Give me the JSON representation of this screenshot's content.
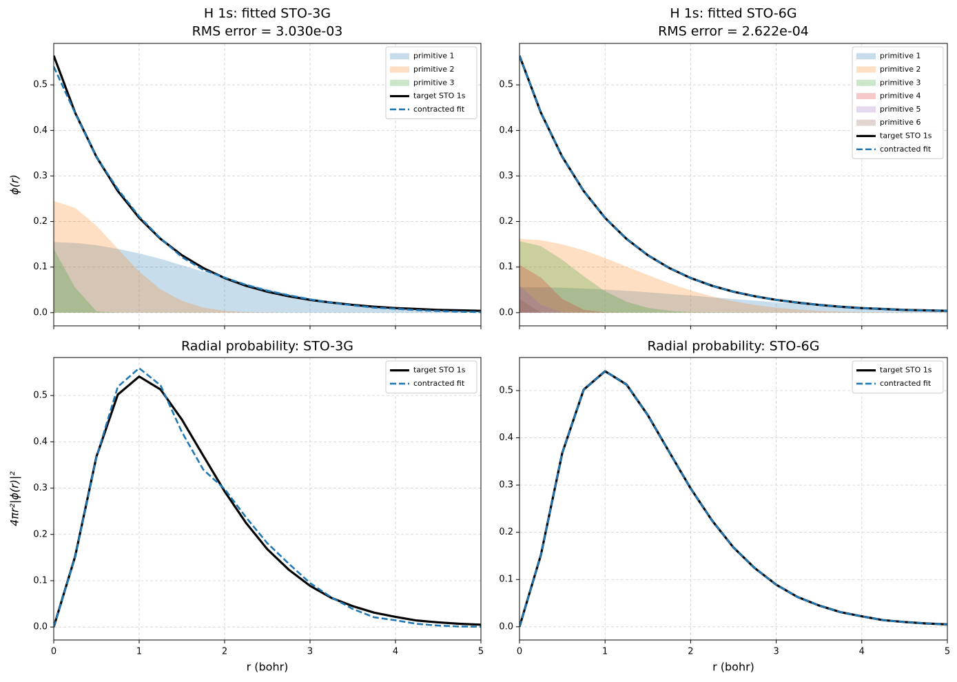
{
  "chart_data": [
    {
      "type": "line",
      "title": "H 1s: fitted STO-3G",
      "subtitle": "RMS error = 3.030e-03",
      "ylabel": "ϕ(r)",
      "x": [
        0,
        0.25,
        0.5,
        0.75,
        1,
        1.25,
        1.5,
        1.75,
        2,
        2.25,
        2.5,
        2.75,
        3,
        3.25,
        3.5,
        3.75,
        4,
        4.25,
        4.5,
        4.75,
        5
      ],
      "series": [
        {
          "name": "primitive 1",
          "color": "#1f77b4",
          "style": "fill",
          "values": [
            0.155,
            0.153,
            0.148,
            0.14,
            0.13,
            0.118,
            0.104,
            0.09,
            0.077,
            0.064,
            0.052,
            0.041,
            0.032,
            0.024,
            0.018,
            0.013,
            0.009,
            0.006,
            0.004,
            0.003,
            0.002
          ]
        },
        {
          "name": "primitive 2",
          "color": "#ff7f0e",
          "style": "fill",
          "values": [
            0.245,
            0.23,
            0.191,
            0.14,
            0.09,
            0.051,
            0.026,
            0.011,
            0.004,
            0.0015,
            0.0005,
            0,
            0,
            0,
            0,
            0,
            0,
            0,
            0,
            0,
            0
          ]
        },
        {
          "name": "primitive 3",
          "color": "#2ca02c",
          "style": "fill",
          "values": [
            0.14,
            0.055,
            0.003,
            0,
            0,
            0,
            0,
            0,
            0,
            0,
            0,
            0,
            0,
            0,
            0,
            0,
            0,
            0,
            0,
            0,
            0
          ]
        },
        {
          "name": "target STO 1s",
          "color": "#000000",
          "style": "solid",
          "values": [
            0.564,
            0.439,
            0.342,
            0.267,
            0.208,
            0.162,
            0.126,
            0.098,
            0.076,
            0.059,
            0.046,
            0.036,
            0.028,
            0.022,
            0.017,
            0.013,
            0.01,
            0.008,
            0.006,
            0.005,
            0.004
          ]
        },
        {
          "name": "contracted fit",
          "color": "#1f77b4",
          "style": "dashed",
          "values": [
            0.54,
            0.438,
            0.342,
            0.271,
            0.211,
            0.163,
            0.122,
            0.094,
            0.077,
            0.061,
            0.048,
            0.038,
            0.029,
            0.022,
            0.016,
            0.011,
            0.0085,
            0.0055,
            0.0035,
            0.002,
            0.0012
          ]
        }
      ],
      "xlim": [
        0,
        5
      ],
      "ylim": [
        -0.029,
        0.591
      ],
      "xticks": [
        0,
        1,
        2,
        3,
        4,
        5
      ],
      "xtick_labels": false,
      "yticks": [
        {
          "value": 0,
          "label": "0.0"
        },
        0.1,
        0.2,
        0.3,
        0.4,
        0.5
      ],
      "grid": true,
      "legend": "upper right"
    },
    {
      "type": "line",
      "title": "H 1s: fitted STO-6G",
      "subtitle": "RMS error = 2.622e-04",
      "x": [
        0,
        0.25,
        0.5,
        0.75,
        1,
        1.25,
        1.5,
        1.75,
        2,
        2.25,
        2.5,
        2.75,
        3,
        3.25,
        3.5,
        3.75,
        4,
        4.25,
        4.5,
        4.75,
        5
      ],
      "series": [
        {
          "name": "primitive 1",
          "color": "#1f77b4",
          "style": "fill",
          "values": [
            0.056,
            0.0557,
            0.0546,
            0.0529,
            0.0507,
            0.0479,
            0.0447,
            0.0412,
            0.0375,
            0.0338,
            0.03,
            0.0263,
            0.0228,
            0.0195,
            0.0165,
            0.0137,
            0.0113,
            0.0092,
            0.0074,
            0.0059,
            0.0046
          ]
        },
        {
          "name": "primitive 2",
          "color": "#ff7f0e",
          "style": "fill",
          "values": [
            0.162,
            0.159,
            0.15,
            0.137,
            0.12,
            0.101,
            0.0825,
            0.0646,
            0.0488,
            0.0355,
            0.0248,
            0.0167,
            0.0109,
            0.0068,
            0.0041,
            0.0024,
            0.0013,
            0.0007,
            0.0004,
            0.0002,
            0.0001
          ]
        },
        {
          "name": "primitive 3",
          "color": "#2ca02c",
          "style": "fill",
          "values": [
            0.157,
            0.146,
            0.116,
            0.08,
            0.047,
            0.024,
            0.0105,
            0.004,
            0.0013,
            0.0004,
            0.0001,
            0,
            0,
            0,
            0,
            0,
            0,
            0,
            0,
            0,
            0
          ]
        },
        {
          "name": "primitive 4",
          "color": "#d62728",
          "style": "fill",
          "values": [
            0.105,
            0.077,
            0.03,
            0.0063,
            0.0007,
            0,
            0,
            0,
            0,
            0,
            0,
            0,
            0,
            0,
            0,
            0,
            0,
            0,
            0,
            0,
            0
          ]
        },
        {
          "name": "primitive 5",
          "color": "#9467bd",
          "style": "fill",
          "values": [
            0.06,
            0.0172,
            0.0004,
            0,
            0,
            0,
            0,
            0,
            0,
            0,
            0,
            0,
            0,
            0,
            0,
            0,
            0,
            0,
            0,
            0,
            0
          ]
        },
        {
          "name": "primitive 6",
          "color": "#8c564b",
          "style": "fill",
          "values": [
            0.03,
            0,
            0,
            0,
            0,
            0,
            0,
            0,
            0,
            0,
            0,
            0,
            0,
            0,
            0,
            0,
            0,
            0,
            0,
            0,
            0
          ]
        },
        {
          "name": "target STO 1s",
          "color": "#000000",
          "style": "solid",
          "values": [
            0.564,
            0.439,
            0.342,
            0.267,
            0.208,
            0.162,
            0.126,
            0.098,
            0.076,
            0.059,
            0.046,
            0.036,
            0.028,
            0.022,
            0.017,
            0.013,
            0.01,
            0.008,
            0.006,
            0.005,
            0.004
          ]
        },
        {
          "name": "contracted fit",
          "color": "#1f77b4",
          "style": "dashed",
          "values": [
            0.564,
            0.439,
            0.342,
            0.267,
            0.208,
            0.162,
            0.126,
            0.098,
            0.076,
            0.059,
            0.046,
            0.036,
            0.028,
            0.022,
            0.017,
            0.013,
            0.01,
            0.008,
            0.006,
            0.005,
            0.004
          ]
        }
      ],
      "xlim": [
        0,
        5
      ],
      "ylim": [
        -0.029,
        0.591
      ],
      "xticks": [
        0,
        1,
        2,
        3,
        4,
        5
      ],
      "xtick_labels": false,
      "yticks": [
        {
          "value": 0,
          "label": "0.0"
        },
        0.1,
        0.2,
        0.3,
        0.4,
        0.5
      ],
      "grid": true,
      "legend": "upper right"
    },
    {
      "type": "line",
      "title": "Radial probability: STO-3G",
      "ylabel": "4πr²|ϕ(r)|²",
      "xlabel": "r (bohr)",
      "x": [
        0,
        0.25,
        0.5,
        0.75,
        1,
        1.25,
        1.5,
        1.75,
        2,
        2.25,
        2.5,
        2.75,
        3,
        3.25,
        3.5,
        3.75,
        4,
        4.25,
        4.5,
        4.75,
        5
      ],
      "series": [
        {
          "name": "target STO 1s",
          "color": "#000000",
          "style": "solid",
          "values": [
            0,
            0.152,
            0.368,
            0.502,
            0.541,
            0.513,
            0.448,
            0.37,
            0.293,
            0.225,
            0.168,
            0.124,
            0.089,
            0.063,
            0.045,
            0.031,
            0.022,
            0.014,
            0.01,
            0.007,
            0.005
          ]
        },
        {
          "name": "contracted fit",
          "color": "#1f77b4",
          "style": "dashed",
          "values": [
            0,
            0.151,
            0.367,
            0.519,
            0.559,
            0.522,
            0.421,
            0.34,
            0.298,
            0.237,
            0.181,
            0.137,
            0.095,
            0.064,
            0.039,
            0.021,
            0.0145,
            0.0069,
            0.0031,
            0.0011,
            0.0005
          ]
        }
      ],
      "xlim": [
        0,
        5
      ],
      "ylim": [
        -0.028,
        0.582
      ],
      "xticks": [
        0,
        1,
        2,
        3,
        4,
        5
      ],
      "xtick_labels": true,
      "yticks": [
        {
          "value": 0,
          "label": "0.0"
        },
        0.1,
        0.2,
        0.3,
        0.4,
        0.5
      ],
      "grid": true,
      "legend": "upper right"
    },
    {
      "type": "line",
      "title": "Radial probability: STO-6G",
      "xlabel": "r (bohr)",
      "x": [
        0,
        0.25,
        0.5,
        0.75,
        1,
        1.25,
        1.5,
        1.75,
        2,
        2.25,
        2.5,
        2.75,
        3,
        3.25,
        3.5,
        3.75,
        4,
        4.25,
        4.5,
        4.75,
        5
      ],
      "series": [
        {
          "name": "target STO 1s",
          "color": "#000000",
          "style": "solid",
          "values": [
            0,
            0.152,
            0.368,
            0.502,
            0.541,
            0.513,
            0.448,
            0.37,
            0.293,
            0.225,
            0.168,
            0.124,
            0.089,
            0.063,
            0.045,
            0.031,
            0.022,
            0.014,
            0.01,
            0.007,
            0.005
          ]
        },
        {
          "name": "contracted fit",
          "color": "#1f77b4",
          "style": "dashed",
          "values": [
            0,
            0.152,
            0.368,
            0.502,
            0.541,
            0.513,
            0.448,
            0.37,
            0.293,
            0.225,
            0.168,
            0.124,
            0.089,
            0.063,
            0.045,
            0.031,
            0.022,
            0.014,
            0.01,
            0.007,
            0.005
          ]
        }
      ],
      "xlim": [
        0,
        5
      ],
      "ylim": [
        -0.028,
        0.57
      ],
      "xticks": [
        0,
        1,
        2,
        3,
        4,
        5
      ],
      "xtick_labels": true,
      "yticks": [
        {
          "value": 0,
          "label": "0.0"
        },
        0.1,
        0.2,
        0.3,
        0.4,
        0.5
      ],
      "grid": true,
      "legend": "upper right"
    }
  ]
}
